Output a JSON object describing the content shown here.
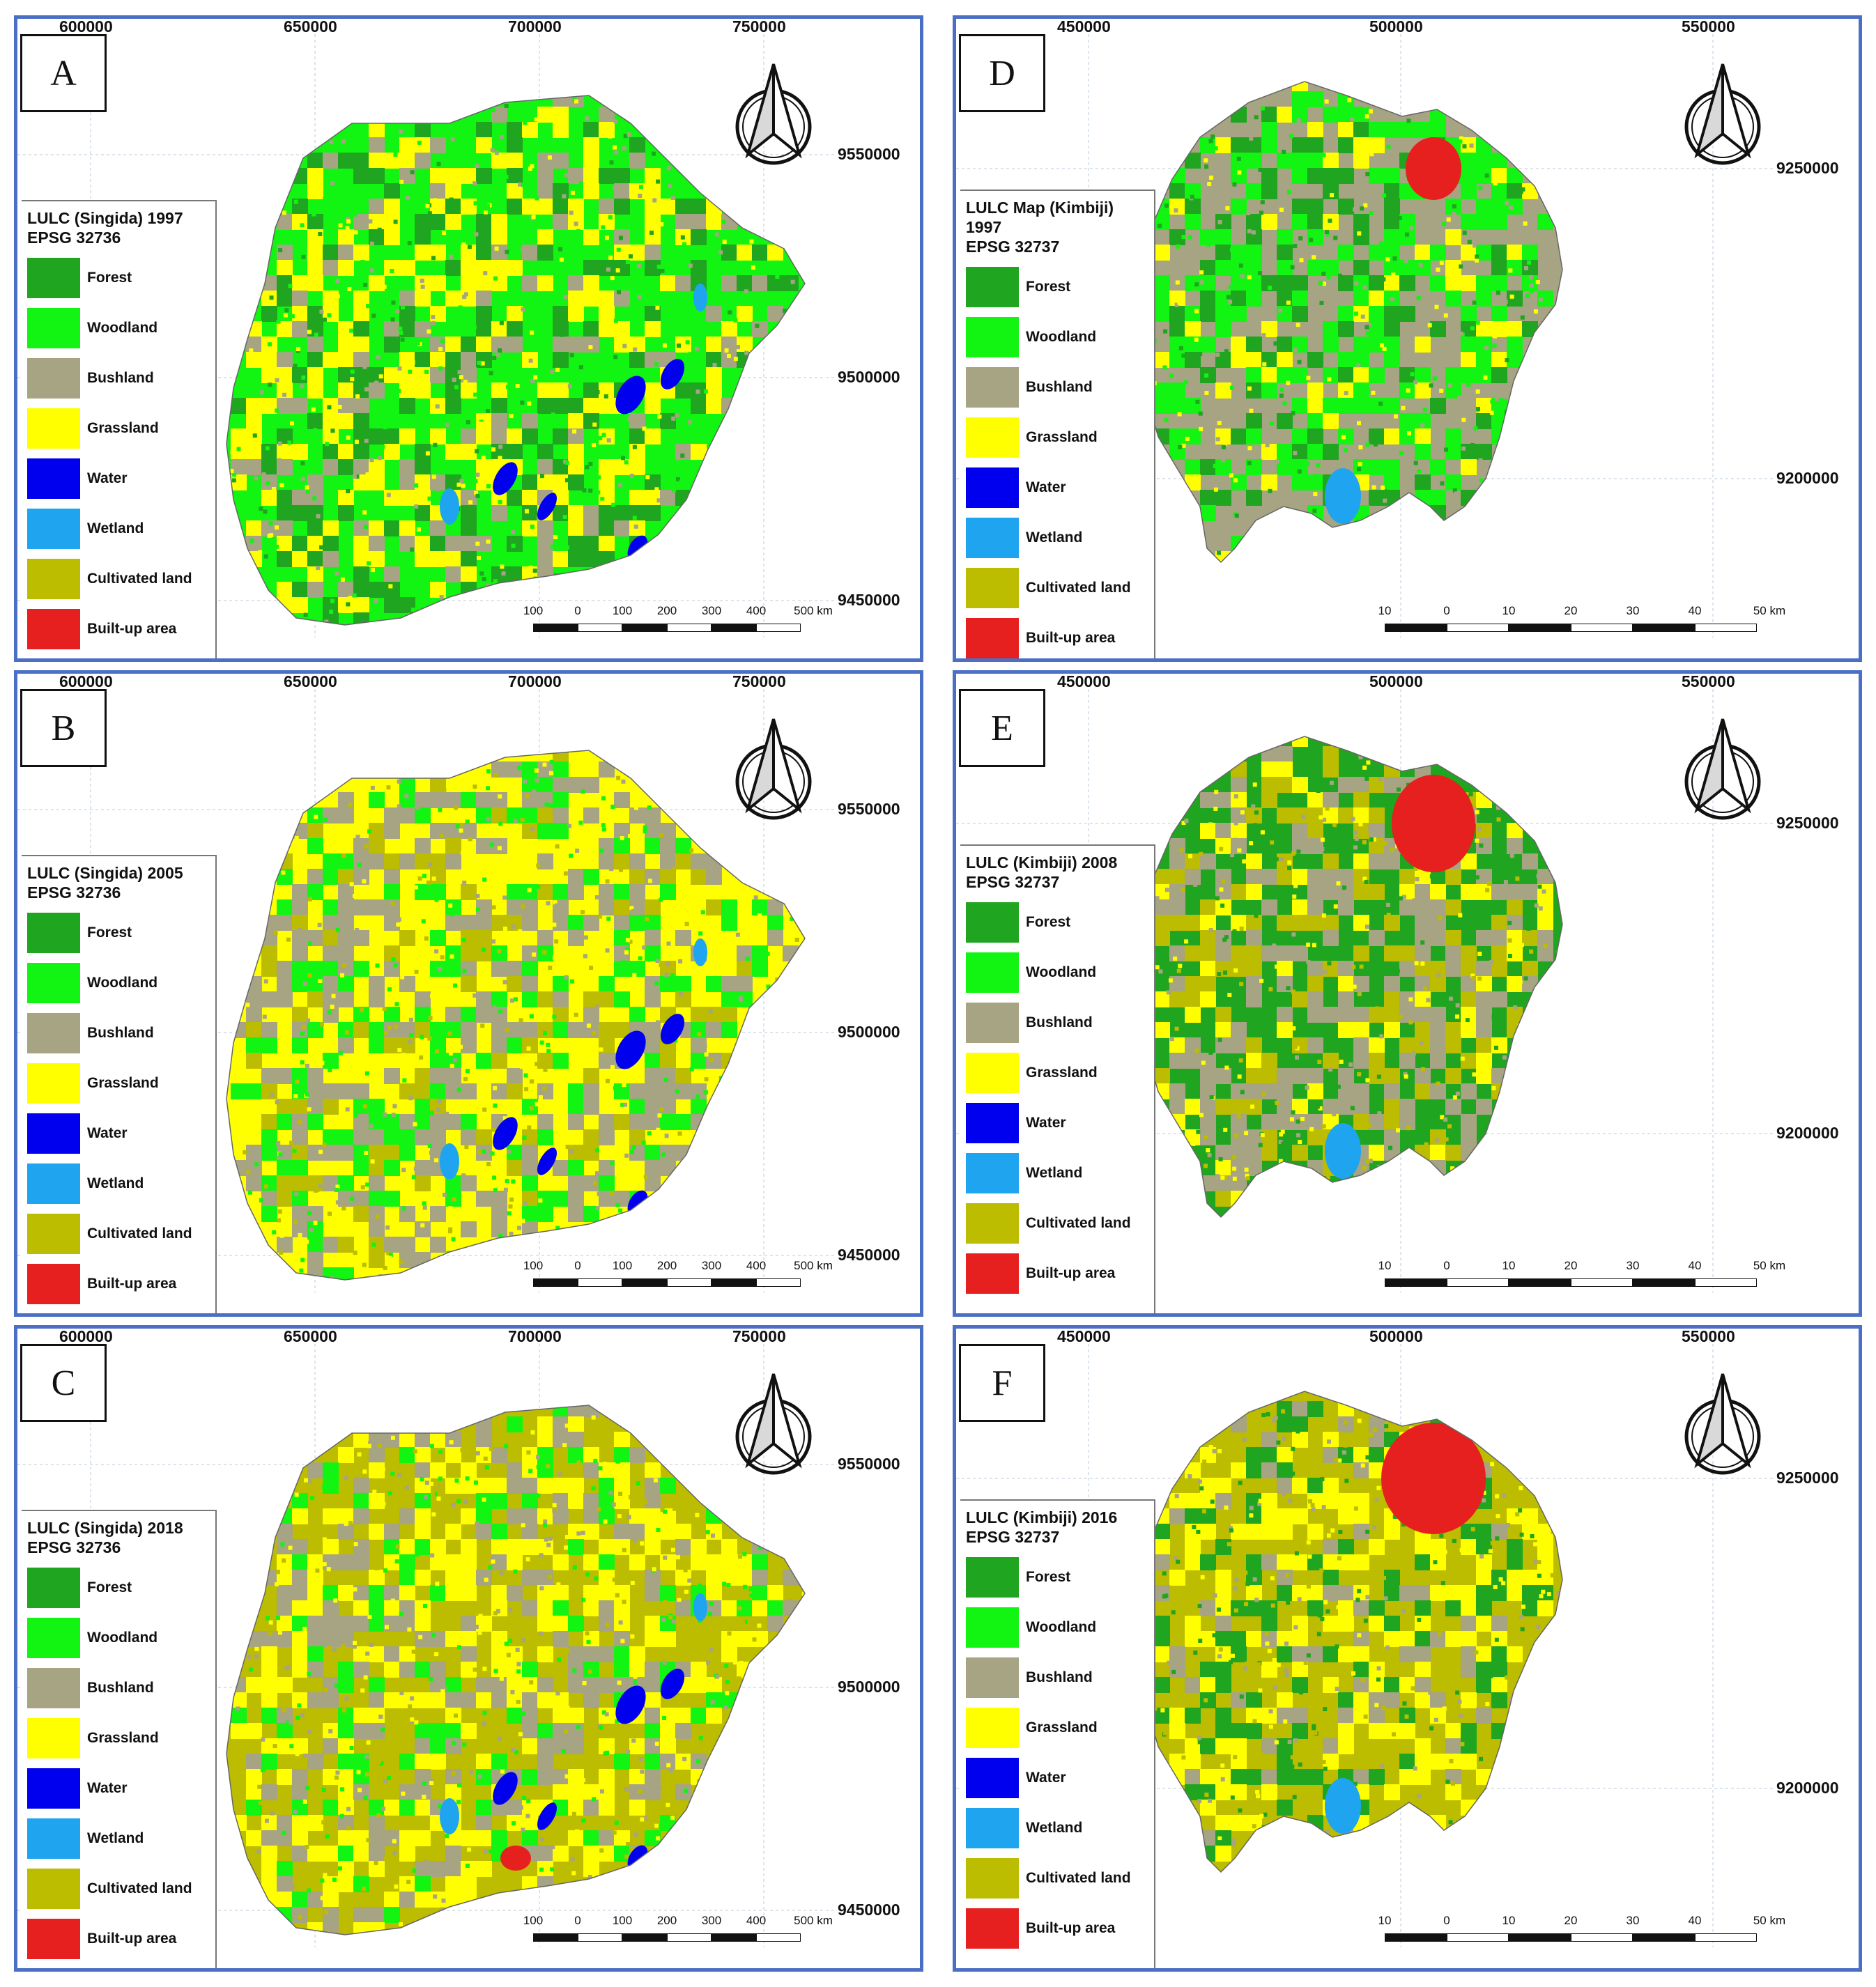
{
  "colors": {
    "Forest": "#1fa51f",
    "Woodland": "#12f412",
    "Bushland": "#a6a483",
    "Grassland": "#ffff00",
    "Water": "#0000ee",
    "Wetland": "#1fa5ef",
    "Cultivated land": "#bcbc00",
    "Built-up area": "#e61f1f",
    "frame": "#4a6fc4"
  },
  "legend_classes": [
    "Forest",
    "Woodland",
    "Bushland",
    "Grassland",
    "Water",
    "Wetland",
    "Cultivated land",
    "Built-up area"
  ],
  "panels": [
    {
      "id": "A",
      "label": "A",
      "legend_title": "LULC (Singida) 1997",
      "legend_epsg": "EPSG 32736",
      "top_ticks": [
        "600000",
        "650000",
        "700000",
        "750000"
      ],
      "right_ticks": [
        "9550000",
        "9500000",
        "9450000"
      ],
      "scale_labels": [
        "100",
        "0",
        "100",
        "200",
        "300",
        "400",
        "500 km"
      ],
      "dominant": [
        "Woodland",
        "Grassland",
        "Forest",
        "Bushland"
      ],
      "region": "singida",
      "north_icon": "north-arrow-icon"
    },
    {
      "id": "B",
      "label": "B",
      "legend_title": "LULC (Singida) 2005",
      "legend_epsg": "EPSG 32736",
      "top_ticks": [
        "600000",
        "650000",
        "700000",
        "750000"
      ],
      "right_ticks": [
        "9550000",
        "9500000",
        "9450000"
      ],
      "scale_labels": [
        "100",
        "0",
        "100",
        "200",
        "300",
        "400",
        "500 km"
      ],
      "dominant": [
        "Grassland",
        "Bushland",
        "Woodland",
        "Cultivated land"
      ],
      "region": "singida",
      "north_icon": "north-arrow-icon"
    },
    {
      "id": "C",
      "label": "C",
      "legend_title": "LULC (Singida) 2018",
      "legend_epsg": "EPSG 32736",
      "top_ticks": [
        "600000",
        "650000",
        "700000",
        "750000"
      ],
      "right_ticks": [
        "9550000",
        "9500000",
        "9450000"
      ],
      "scale_labels": [
        "100",
        "0",
        "100",
        "200",
        "300",
        "400",
        "500 km"
      ],
      "dominant": [
        "Cultivated land",
        "Grassland",
        "Bushland",
        "Woodland"
      ],
      "region": "singida",
      "north_icon": "north-arrow-icon"
    },
    {
      "id": "D",
      "label": "D",
      "legend_title": "LULC Map (Kimbiji) 1997",
      "legend_epsg": "EPSG 32737",
      "top_ticks": [
        "450000",
        "500000",
        "550000"
      ],
      "right_ticks": [
        "9250000",
        "9200000"
      ],
      "scale_labels": [
        "10",
        "0",
        "10",
        "20",
        "30",
        "40",
        "50 km"
      ],
      "dominant": [
        "Bushland",
        "Woodland",
        "Forest",
        "Grassland"
      ],
      "region": "kimbiji",
      "north_icon": "north-arrow-icon"
    },
    {
      "id": "E",
      "label": "E",
      "legend_title": "LULC (Kimbiji) 2008",
      "legend_epsg": "EPSG 32737",
      "top_ticks": [
        "450000",
        "500000",
        "550000"
      ],
      "right_ticks": [
        "9250000",
        "9200000"
      ],
      "scale_labels": [
        "10",
        "0",
        "10",
        "20",
        "30",
        "40",
        "50 km"
      ],
      "dominant": [
        "Forest",
        "Bushland",
        "Cultivated land",
        "Grassland"
      ],
      "region": "kimbiji",
      "north_icon": "north-arrow-icon"
    },
    {
      "id": "F",
      "label": "F",
      "legend_title": "LULC (Kimbiji) 2016",
      "legend_epsg": "EPSG 32737",
      "top_ticks": [
        "450000",
        "500000",
        "550000"
      ],
      "right_ticks": [
        "9250000",
        "9200000"
      ],
      "scale_labels": [
        "10",
        "0",
        "10",
        "20",
        "30",
        "40",
        "50 km"
      ],
      "dominant": [
        "Cultivated land",
        "Grassland",
        "Forest",
        "Bushland"
      ],
      "region": "kimbiji",
      "north_icon": "north-arrow-icon"
    }
  ]
}
